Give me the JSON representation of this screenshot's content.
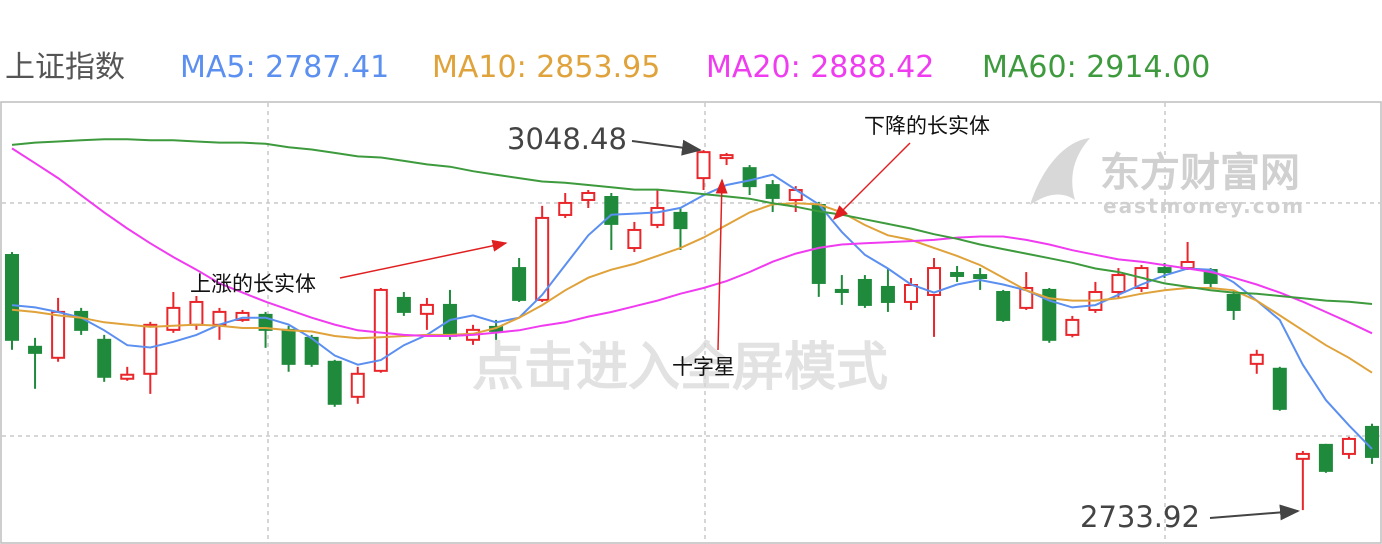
{
  "chart_data": {
    "type": "candlestick",
    "title": "上证指数",
    "up_color": "#e8262b",
    "down_color": "#1f8a3b",
    "ylim": [
      2704.3,
      3090.5
    ],
    "open": [
      2956.8,
      2876.6,
      2867.0,
      2907.1,
      2882.7,
      2848.7,
      2853.0,
      2891.4,
      2895.8,
      2895.8,
      2900.1,
      2904.5,
      2891.4,
      2884.4,
      2863.5,
      2832.9,
      2855.6,
      2919.3,
      2905.4,
      2913.2,
      2882.7,
      2894.0,
      2945.4,
      2917.6,
      2991.8,
      3004.9,
      3007.5,
      2962.9,
      2983.1,
      2993.6,
      3024.0,
      3041.5,
      3032.7,
      3017.9,
      3004.9,
      3000.5,
      2926.3,
      2935.0,
      2928.9,
      2915.8,
      2921.9,
      2941.1,
      2939.3,
      2924.5,
      2910.6,
      2926.3,
      2887.0,
      2908.8,
      2924.5,
      2928.0,
      2945.4,
      2945.4,
      2943.7,
      2921.9,
      2861.7,
      2857.4,
      2778.7,
      2790.9,
      2783.0,
      2806.6
    ],
    "high": [
      2959.4,
      2884.4,
      2919.3,
      2910.6,
      2887.0,
      2859.1,
      2898.4,
      2924.5,
      2921.0,
      2910.6,
      2908.8,
      2907.1,
      2894.9,
      2887.0,
      2865.2,
      2859.1,
      2928.0,
      2924.5,
      2919.3,
      2926.3,
      2895.8,
      2900.1,
      2954.2,
      2999.7,
      3011.0,
      3013.6,
      3011.0,
      2985.7,
      3013.6,
      2997.9,
      3048.48,
      3046.0,
      3035.4,
      3022.3,
      3017.0,
      3003.2,
      2939.3,
      2939.3,
      2945.4,
      2936.7,
      2954.2,
      2947.2,
      2945.4,
      2926.3,
      2941.9,
      2928.0,
      2903.6,
      2933.3,
      2945.4,
      2948.1,
      2949.8,
      2968.2,
      2945.4,
      2926.3,
      2874.0,
      2859.1,
      2785.6,
      2791.8,
      2797.9,
      2809.4
    ],
    "low": [
      2874.0,
      2839.9,
      2863.5,
      2887.0,
      2846.0,
      2846.9,
      2835.5,
      2888.8,
      2891.4,
      2882.7,
      2898.4,
      2875.7,
      2854.8,
      2859.1,
      2824.2,
      2826.8,
      2853.9,
      2903.6,
      2891.4,
      2882.7,
      2878.3,
      2882.7,
      2915.8,
      2915.8,
      2989.2,
      2997.9,
      2961.2,
      2959.4,
      2980.3,
      2961.2,
      3013.6,
      3035.4,
      3009.2,
      2994.4,
      2994.4,
      2920.2,
      2913.2,
      2910.6,
      2907.1,
      2908.8,
      2885.3,
      2933.3,
      2926.3,
      2898.4,
      2908.8,
      2880.1,
      2884.9,
      2906.2,
      2919.3,
      2924.5,
      2936.7,
      2943.7,
      2928.0,
      2900.1,
      2853.0,
      2820.7,
      2733.92,
      2766.5,
      2778.7,
      2774.3
    ],
    "close": [
      2882.7,
      2871.3,
      2907.1,
      2891.4,
      2850.4,
      2852.2,
      2895.8,
      2910.6,
      2915.8,
      2907.1,
      2906.2,
      2891.4,
      2861.7,
      2861.7,
      2826.8,
      2853.0,
      2926.3,
      2907.1,
      2913.2,
      2886.2,
      2891.4,
      2890.5,
      2917.6,
      2989.2,
      3002.3,
      3011.0,
      2984.0,
      2978.7,
      2997.9,
      2980.3,
      3046.7,
      3044.1,
      3017.0,
      3006.7,
      3013.6,
      2932.4,
      2924.5,
      2913.2,
      2915.8,
      2930.6,
      2945.4,
      2938.5,
      2936.7,
      2900.1,
      2928.0,
      2882.7,
      2900.1,
      2924.5,
      2939.3,
      2945.4,
      2941.9,
      2950.7,
      2932.4,
      2908.8,
      2869.6,
      2822.4,
      2783.0,
      2768.2,
      2796.1,
      2780.4
    ],
    "series": [
      {
        "name": "MA5: 2787.41",
        "color": "#5b8ff0",
        "values": [
          2913,
          2911,
          2907,
          2902,
          2891,
          2878,
          2876,
          2881,
          2887,
          2896,
          2902,
          2902,
          2896,
          2884,
          2869,
          2861,
          2865,
          2878,
          2887,
          2900,
          2904,
          2898,
          2902,
          2922,
          2948,
          2974,
          2992,
          2993,
          2994,
          2998,
          3009,
          3018,
          3022,
          3027,
          3014,
          3001,
          2977,
          2957,
          2945,
          2931,
          2924,
          2931,
          2935,
          2931,
          2926,
          2917,
          2911,
          2913,
          2922,
          2931,
          2939,
          2945,
          2944,
          2933,
          2917,
          2900,
          2861,
          2830,
          2808,
          2787.41
        ]
      },
      {
        "name": "MA10: 2853.95",
        "color": "#e0a23a",
        "values": [
          2909,
          2907,
          2904,
          2902,
          2898,
          2896,
          2894,
          2895,
          2896,
          2895,
          2893,
          2893,
          2891,
          2890,
          2886,
          2884,
          2885,
          2886,
          2887,
          2887,
          2888,
          2893,
          2902,
          2913,
          2926,
          2937,
          2944,
          2949,
          2956,
          2963,
          2972,
          2983,
          2994,
          3001,
          3002,
          3001,
          2994,
          2983,
          2974,
          2970,
          2963,
          2956,
          2948,
          2937,
          2926,
          2919,
          2917,
          2917,
          2919,
          2923,
          2926,
          2928,
          2928,
          2926,
          2917,
          2904,
          2891,
          2878,
          2867,
          2853.95
        ]
      },
      {
        "name": "MA20: 2888.42",
        "color": "#f03cf0",
        "values": [
          3050,
          3037,
          3024,
          3009,
          2994,
          2980,
          2967,
          2955,
          2944,
          2932,
          2924,
          2916,
          2909,
          2902,
          2896,
          2891,
          2889,
          2887,
          2886,
          2886,
          2887,
          2889,
          2891,
          2895,
          2898,
          2903,
          2907,
          2912,
          2917,
          2923,
          2928,
          2934,
          2942,
          2951,
          2958,
          2963,
          2966,
          2967,
          2968,
          2969,
          2970,
          2972,
          2973,
          2973,
          2970,
          2966,
          2961,
          2957,
          2953,
          2951,
          2948,
          2945,
          2942,
          2937,
          2931,
          2924,
          2916,
          2907,
          2898,
          2888.42
        ]
      },
      {
        "name": "MA60: 2914.00",
        "color": "#3d9a3d",
        "values": [
          3053,
          3055,
          3056,
          3057,
          3058,
          3058,
          3057,
          3057,
          3056,
          3055,
          3055,
          3054,
          3051,
          3049,
          3046,
          3043,
          3042,
          3039,
          3036,
          3034,
          3030,
          3027,
          3024,
          3021,
          3020,
          3018,
          3016,
          3014,
          3014,
          3012,
          3010,
          3008,
          3006,
          3002,
          2999,
          2995,
          2992,
          2988,
          2984,
          2980,
          2975,
          2971,
          2966,
          2962,
          2958,
          2954,
          2950,
          2945,
          2942,
          2937,
          2932,
          2929,
          2926,
          2924,
          2923,
          2921,
          2919,
          2917,
          2916,
          2914
        ]
      }
    ],
    "annotations": [
      "上涨的长实体",
      "下降的长实体",
      "十字星"
    ],
    "watermark": "点击进入全屏模式",
    "logo": "东方财富网",
    "logo_url": "eastmoney.com"
  }
}
